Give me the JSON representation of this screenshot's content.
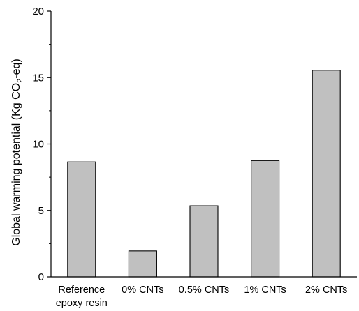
{
  "chart_data": {
    "type": "bar",
    "title": "",
    "xlabel": "",
    "ylabel": "Global warming potential (Kg CO2-eq)",
    "ylabel_parts": {
      "pre": "Global warming potential (Kg CO",
      "sub": "2",
      "post": "-eq)"
    },
    "ylim": [
      0,
      20
    ],
    "yticks": [
      0,
      5,
      10,
      15,
      20
    ],
    "grid": false,
    "categories": [
      [
        "Reference",
        "epoxy resin"
      ],
      [
        "0% CNTs"
      ],
      [
        "0.5% CNTs"
      ],
      [
        "1% CNTs"
      ],
      [
        "2% CNTs"
      ]
    ],
    "values": [
      8.65,
      1.95,
      5.35,
      8.75,
      15.55
    ],
    "bar_color": "#c0c0c0"
  }
}
